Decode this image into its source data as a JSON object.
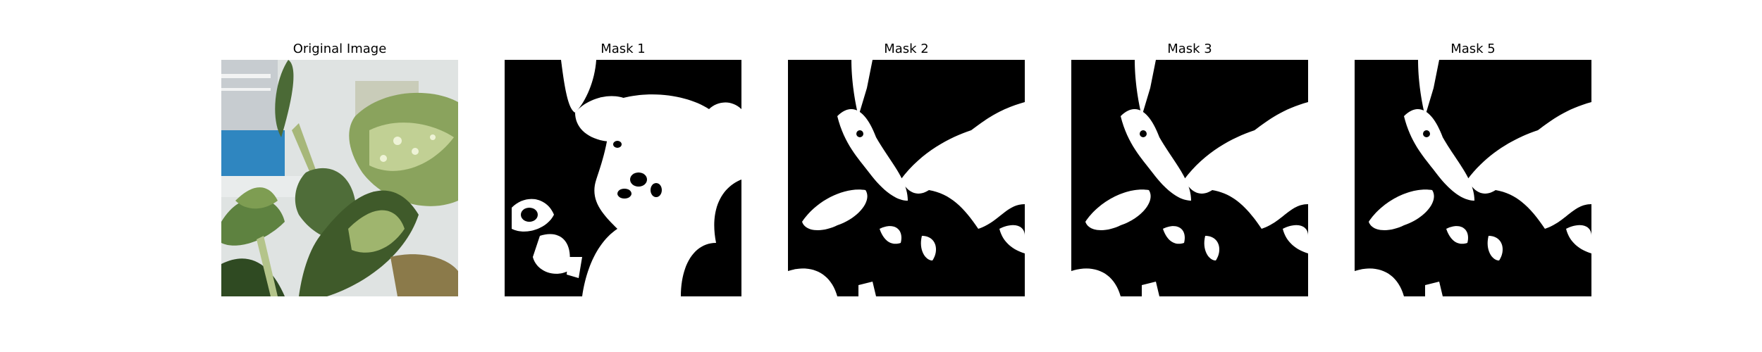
{
  "figure": {
    "panels": [
      {
        "title": "Original Image"
      },
      {
        "title": "Mask 1"
      },
      {
        "title": "Mask 2"
      },
      {
        "title": "Mask 3"
      },
      {
        "title": "Mask 5"
      }
    ]
  },
  "colors": {
    "mask_foreground": "#ffffff",
    "mask_background": "#000000",
    "leaf_dark": "#3f5a2a",
    "leaf_mid": "#6e8b4a",
    "leaf_light": "#b9c98f",
    "sky_blue": "#3d8fc4",
    "background_gray": "#d9dde0"
  }
}
